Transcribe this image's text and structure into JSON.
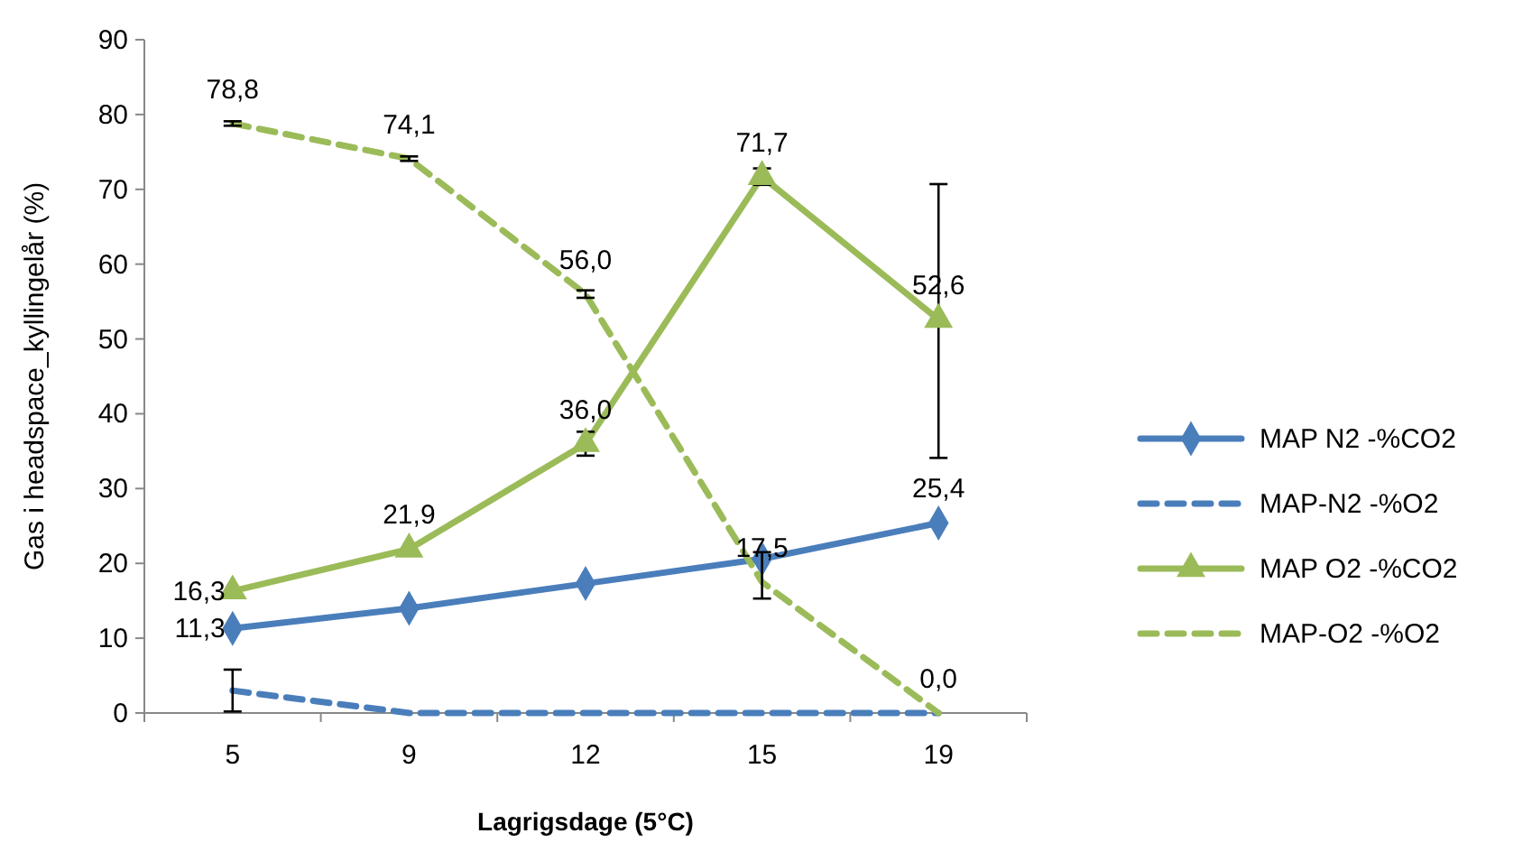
{
  "chart_data": {
    "type": "line",
    "xlabel": "Lagrigsdage  (5°C)",
    "ylabel": "Gas i headspace_kyllingelår (%)",
    "categories": [
      "5",
      "9",
      "12",
      "15",
      "19"
    ],
    "ylim": [
      0,
      90
    ],
    "yticks": [
      0,
      10,
      20,
      30,
      40,
      50,
      60,
      70,
      80,
      90
    ],
    "grid": false,
    "legend": "right",
    "series": [
      {
        "name": "MAP N2 -%CO2",
        "color": "#4a7ebb",
        "marker": "diamond",
        "line_style": "solid",
        "values": [
          11.3,
          14.0,
          17.3,
          20.6,
          25.4
        ],
        "value_labels": [
          "11,3",
          null,
          null,
          null,
          "25,4"
        ]
      },
      {
        "name": "MAP-N2 -%O2",
        "color": "#4a7ebb",
        "marker": "none",
        "line_style": "dashed",
        "values": [
          3.0,
          0,
          0,
          0,
          0
        ],
        "errors": [
          2.8,
          null,
          null,
          null,
          null
        ]
      },
      {
        "name": "MAP O2 -%CO2",
        "color": "#9bbb59",
        "marker": "triangle",
        "line_style": "solid",
        "values": [
          16.3,
          21.9,
          36.0,
          71.7,
          52.6
        ],
        "value_labels": [
          "16,3",
          "21,9",
          "36,0",
          "71,7",
          "52,6"
        ],
        "errors": [
          null,
          null,
          1.6,
          1.1,
          [
            34.1,
            70.7
          ]
        ]
      },
      {
        "name": "MAP-O2 -%O2",
        "color": "#9bbb59",
        "marker": "none",
        "line_style": "dashed",
        "values": [
          78.8,
          74.1,
          56.0,
          17.5,
          0.0
        ],
        "value_labels": [
          "78,8",
          "74,1",
          "56,0",
          "17,5",
          "0,0"
        ],
        "errors": [
          0.3,
          0.3,
          0.5,
          [
            15.3,
            21.5
          ],
          null
        ]
      }
    ]
  }
}
